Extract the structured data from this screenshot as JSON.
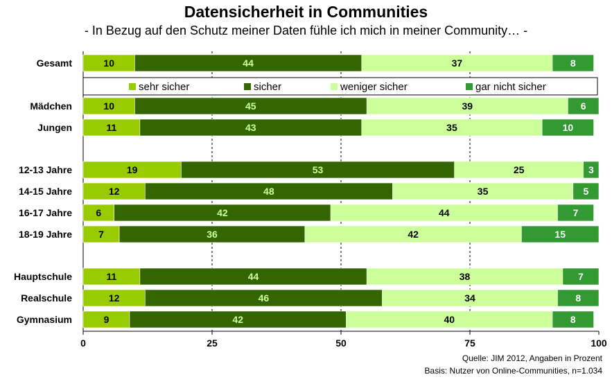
{
  "chart_data": {
    "type": "bar",
    "orientation": "horizontal",
    "stacked": true,
    "title": "Datensicherheit in Communities",
    "subtitle": "- In Bezug auf den Schutz meiner Daten fühle ich mich in meiner Community… -",
    "categories": [
      "Gesamt",
      "Mädchen",
      "Jungen",
      "12-13 Jahre",
      "14-15 Jahre",
      "16-17 Jahre",
      "18-19 Jahre",
      "Hauptschule",
      "Realschule",
      "Gymnasium"
    ],
    "series": [
      {
        "name": "sehr sicher",
        "color": "#99cc00",
        "label_color": "#000000",
        "values": [
          10,
          10,
          11,
          19,
          12,
          6,
          7,
          11,
          12,
          9
        ]
      },
      {
        "name": "sicher",
        "color": "#336600",
        "label_color": "#ccff99",
        "values": [
          44,
          45,
          43,
          53,
          48,
          42,
          36,
          44,
          46,
          42
        ]
      },
      {
        "name": "weniger sicher",
        "color": "#ccff99",
        "label_color": "#000000",
        "values": [
          37,
          39,
          35,
          25,
          35,
          44,
          42,
          38,
          34,
          40
        ]
      },
      {
        "name": "gar nicht sicher",
        "color": "#339933",
        "label_color": "#ffffff",
        "values": [
          8,
          6,
          10,
          3,
          5,
          7,
          15,
          7,
          8,
          8
        ]
      }
    ],
    "xlim": [
      0,
      100
    ],
    "xticks": [
      0,
      25,
      50,
      75,
      100
    ],
    "grid": "vertical dashed",
    "legend_position": "below-first-bar"
  },
  "source": {
    "line1": "Quelle: JIM 2012, Angaben in Prozent",
    "line2": "Basis: Nutzer von Online-Communities, n=1.034"
  }
}
